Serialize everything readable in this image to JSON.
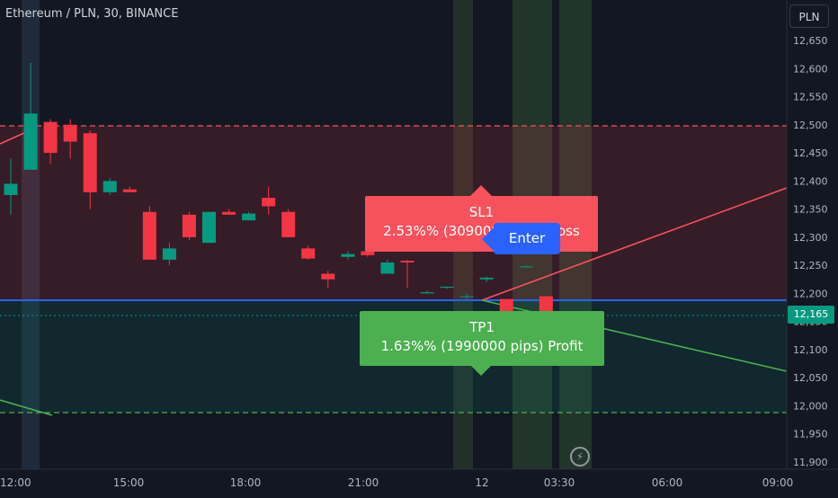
{
  "header": {
    "symbol_title": "Ethereum / PLN, 30, BINANCE"
  },
  "toolbar": {
    "currency_button": "PLN"
  },
  "price_scale": {
    "labels": [
      "12,650",
      "12,600",
      "12,550",
      "12,500",
      "12,450",
      "12,400",
      "12,350",
      "12,300",
      "12,250",
      "12,200",
      "12,150",
      "12,100",
      "12,050",
      "12,000",
      "11,950",
      "11,900"
    ],
    "current_price": "12,165"
  },
  "time_axis": {
    "labels": [
      "12:00",
      "15:00",
      "18:00",
      "21:00",
      "12",
      "03:30",
      "06:00",
      "09:00"
    ]
  },
  "orders": {
    "sl": {
      "title": "SL1",
      "detail": "2.53%% (3090000 pips) Loss"
    },
    "tp": {
      "title": "TP1",
      "detail": "1.63%% (1990000 pips) Profit"
    },
    "entry": {
      "label": "Enter"
    }
  },
  "colors": {
    "background": "#131722",
    "up": "#089981",
    "down": "#f23645",
    "sl_badge": "#f5525d",
    "tp_badge": "#4caf50",
    "enter_badge": "#2962ff",
    "entry_line": "#2962ff"
  },
  "icons": {
    "bottom_right": "lightning-icon"
  },
  "chart_data": {
    "type": "candlestick",
    "symbol": "Ethereum / PLN",
    "interval": "30",
    "exchange": "BINANCE",
    "ylim": [
      11900,
      12650
    ],
    "candles": [
      {
        "o": 12375,
        "h": 12440,
        "l": 12340,
        "c": 12395
      },
      {
        "o": 12420,
        "h": 12610,
        "l": 12420,
        "c": 12520
      },
      {
        "o": 12505,
        "h": 12510,
        "l": 12430,
        "c": 12450
      },
      {
        "o": 12500,
        "h": 12510,
        "l": 12440,
        "c": 12470
      },
      {
        "o": 12485,
        "h": 12490,
        "l": 12350,
        "c": 12380
      },
      {
        "o": 12380,
        "h": 12405,
        "l": 12375,
        "c": 12400
      },
      {
        "o": 12385,
        "h": 12390,
        "l": 12380,
        "c": 12380
      },
      {
        "o": 12345,
        "h": 12355,
        "l": 12260,
        "c": 12260
      },
      {
        "o": 12260,
        "h": 12290,
        "l": 12250,
        "c": 12280
      },
      {
        "o": 12340,
        "h": 12345,
        "l": 12295,
        "c": 12300
      },
      {
        "o": 12290,
        "h": 12345,
        "l": 12290,
        "c": 12345
      },
      {
        "o": 12345,
        "h": 12350,
        "l": 12340,
        "c": 12340
      },
      {
        "o": 12330,
        "h": 12345,
        "l": 12330,
        "c": 12342
      },
      {
        "o": 12370,
        "h": 12390,
        "l": 12340,
        "c": 12355
      },
      {
        "o": 12345,
        "h": 12350,
        "l": 12300,
        "c": 12300
      },
      {
        "o": 12280,
        "h": 12285,
        "l": 12260,
        "c": 12262
      },
      {
        "o": 12235,
        "h": 12240,
        "l": 12210,
        "c": 12225
      },
      {
        "o": 12265,
        "h": 12275,
        "l": 12260,
        "c": 12270
      },
      {
        "o": 12275,
        "h": 12285,
        "l": 12265,
        "c": 12268
      },
      {
        "o": 12235,
        "h": 12260,
        "l": 12235,
        "c": 12255
      },
      {
        "o": 12258,
        "h": 12260,
        "l": 12210,
        "c": 12255
      },
      {
        "o": 12200,
        "h": 12205,
        "l": 12200,
        "c": 12202
      },
      {
        "o": 12210,
        "h": 12212,
        "l": 12208,
        "c": 12212
      },
      {
        "o": 12195,
        "h": 12200,
        "l": 12190,
        "c": 12195
      },
      {
        "o": 12225,
        "h": 12230,
        "l": 12220,
        "c": 12228
      },
      {
        "o": 12190,
        "h": 12190,
        "l": 12120,
        "c": 12120
      },
      {
        "o": 12248,
        "h": 12250,
        "l": 12246,
        "c": 12248
      },
      {
        "o": 12195,
        "h": 12195,
        "l": 12165,
        "c": 12165
      }
    ],
    "entry_price": 12190,
    "stop_loss_price": 12500,
    "take_profit_price": 11990,
    "current_price": 12165
  }
}
